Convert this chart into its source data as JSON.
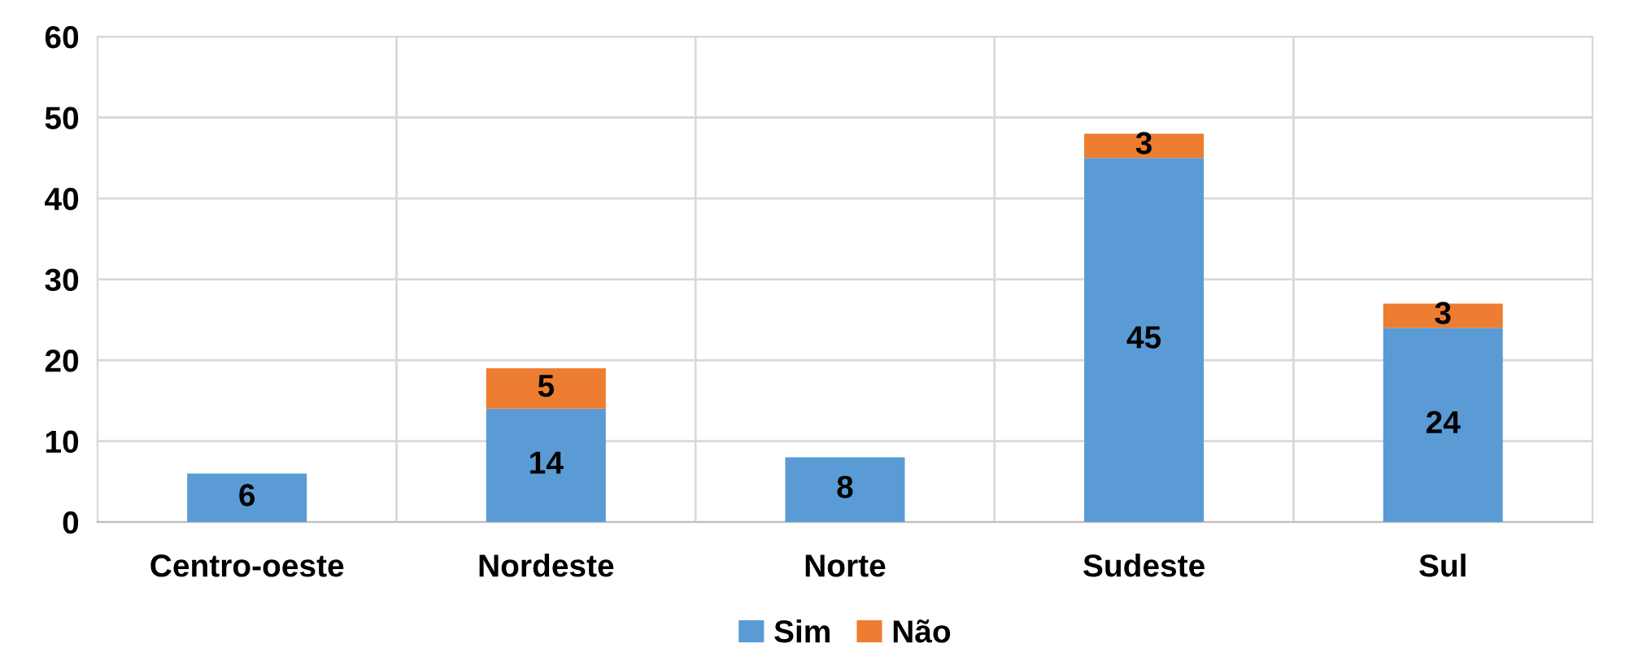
{
  "chart_data": {
    "type": "bar",
    "stacked": true,
    "categories": [
      "Centro-oeste",
      "Nordeste",
      "Norte",
      "Sudeste",
      "Sul"
    ],
    "series": [
      {
        "name": "Sim",
        "color": "#5b9bd5",
        "values": [
          6,
          14,
          8,
          45,
          24
        ]
      },
      {
        "name": "Não",
        "color": "#ed7d31",
        "values": [
          null,
          5,
          null,
          3,
          3
        ]
      }
    ],
    "ylim": [
      0,
      60
    ],
    "yticks": [
      0,
      10,
      20,
      30,
      40,
      50,
      60
    ],
    "grid": true,
    "legend": "bottom",
    "data_labels": true
  }
}
